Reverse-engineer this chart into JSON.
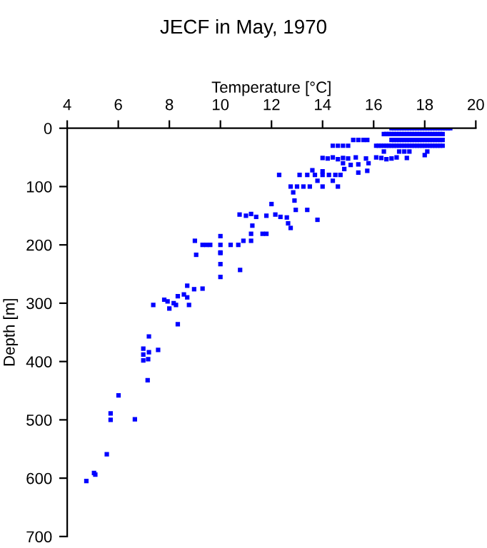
{
  "chart_data": {
    "type": "scatter",
    "title": "JECF in May, 1970",
    "xlabel": "Temperature [°C]",
    "ylabel": "Depth [m]",
    "xlim": [
      4,
      20
    ],
    "xticks": [
      4,
      6,
      8,
      10,
      12,
      14,
      16,
      18,
      20
    ],
    "ylim": [
      700,
      0
    ],
    "yticks": [
      0,
      100,
      200,
      300,
      400,
      500,
      600,
      700
    ],
    "marker": "square",
    "grid": false,
    "legend": false,
    "series": [
      {
        "color": "#0000ff",
        "x": [
          16.7,
          16.8,
          16.9,
          17.0,
          17.1,
          17.2,
          17.3,
          17.4,
          17.5,
          17.6,
          17.7,
          17.8,
          17.9,
          18.0,
          18.1,
          18.2,
          18.3,
          18.4,
          18.5,
          18.6,
          18.7,
          18.8,
          18.9,
          19.0,
          16.4,
          16.5,
          16.6,
          16.7,
          16.8,
          16.9,
          17.0,
          17.1,
          17.2,
          17.3,
          17.4,
          17.5,
          17.6,
          17.7,
          17.8,
          17.9,
          18.0,
          18.1,
          18.2,
          18.3,
          18.4,
          18.5,
          18.6,
          18.7,
          15.2,
          15.4,
          15.6,
          15.75,
          16.7,
          16.8,
          16.9,
          17.0,
          17.1,
          17.2,
          17.3,
          17.4,
          17.5,
          17.6,
          17.7,
          17.8,
          17.9,
          18.0,
          18.1,
          18.2,
          18.3,
          18.4,
          18.5,
          18.6,
          18.7,
          14.4,
          14.6,
          14.8,
          15.0,
          16.1,
          16.2,
          16.3,
          16.4,
          16.5,
          16.6,
          16.7,
          16.8,
          16.9,
          17.0,
          17.1,
          17.2,
          17.3,
          17.4,
          17.5,
          17.6,
          17.7,
          17.8,
          17.9,
          18.0,
          18.1,
          18.2,
          18.3,
          18.4,
          18.5,
          18.6,
          18.7,
          16.4,
          17.0,
          17.2,
          17.4,
          18.1,
          18.0,
          14.0,
          14.2,
          14.4,
          14.6,
          14.8,
          15.0,
          15.3,
          15.7,
          16.1,
          16.3,
          16.5,
          16.7,
          16.9,
          17.3,
          14.8,
          15.1,
          15.4,
          15.8,
          13.6,
          14.0,
          14.85,
          15.4,
          15.75,
          12.3,
          13.1,
          13.4,
          13.7,
          14.0,
          14.25,
          14.5,
          14.7,
          13.8,
          14.4,
          12.75,
          13.0,
          13.25,
          13.5,
          14.0,
          14.6,
          12.85,
          12.9,
          12.0,
          13.4,
          12.95,
          10.75,
          11.0,
          11.2,
          11.4,
          11.8,
          12.15,
          12.35,
          12.6,
          13.8,
          12.65,
          11.25,
          12.75,
          11.2,
          11.65,
          11.8,
          9.0,
          10.9,
          11.2,
          9.3,
          9.45,
          9.6,
          10.0,
          10.4,
          10.7,
          10.0,
          9.05,
          10.0,
          10.0,
          10.0,
          10.0,
          10.77,
          9.3,
          8.97,
          8.7,
          8.7,
          8.57,
          8.33,
          8.77,
          8.26,
          8.17,
          7.93,
          7.8,
          8.0,
          7.37,
          8.33,
          7.2,
          6.98,
          7.2,
          6.98,
          7.56,
          6.98,
          7.17,
          7.15,
          6.01,
          5.7,
          5.7,
          6.65,
          5.55,
          5.05,
          5.1,
          4.75
        ],
        "values": [
          0,
          0,
          0,
          0,
          0,
          0,
          0,
          0,
          0,
          0,
          0,
          0,
          0,
          0,
          0,
          0,
          0,
          0,
          0,
          0,
          0,
          0,
          0,
          0,
          10,
          10,
          10,
          10,
          10,
          10,
          10,
          10,
          10,
          10,
          10,
          10,
          10,
          10,
          10,
          10,
          10,
          10,
          10,
          10,
          10,
          10,
          10,
          10,
          20,
          20,
          20,
          20,
          20,
          20,
          20,
          20,
          20,
          20,
          20,
          20,
          20,
          20,
          20,
          20,
          20,
          20,
          20,
          20,
          20,
          20,
          20,
          20,
          20,
          30,
          30,
          30,
          30,
          30,
          30,
          30,
          30,
          30,
          30,
          30,
          30,
          30,
          30,
          30,
          30,
          30,
          30,
          30,
          30,
          30,
          30,
          30,
          30,
          30,
          30,
          30,
          30,
          30,
          30,
          30,
          40,
          40,
          40,
          40,
          40,
          46,
          51,
          52,
          50,
          53,
          51,
          52,
          50,
          52,
          50,
          51,
          53,
          52,
          50,
          51,
          60,
          63,
          62,
          60,
          72,
          74,
          70,
          76,
          73,
          80,
          80,
          80,
          80,
          80,
          80,
          80,
          80,
          90,
          90,
          100,
          100,
          100,
          100,
          100,
          100,
          110,
          124,
          130,
          140,
          140,
          148,
          150,
          147,
          152,
          150,
          148,
          152,
          153,
          157,
          163,
          167,
          171,
          181,
          181,
          181,
          193,
          193,
          193,
          200,
          200,
          200,
          200,
          200,
          200,
          185,
          217,
          213,
          214,
          233,
          255,
          243,
          275,
          276,
          270,
          290,
          285,
          288,
          303,
          303,
          300,
          297,
          294,
          309,
          303,
          336,
          357,
          378,
          384,
          388,
          380,
          398,
          396,
          432,
          458,
          489,
          500,
          499,
          559,
          591,
          594,
          605
        ]
      }
    ]
  }
}
